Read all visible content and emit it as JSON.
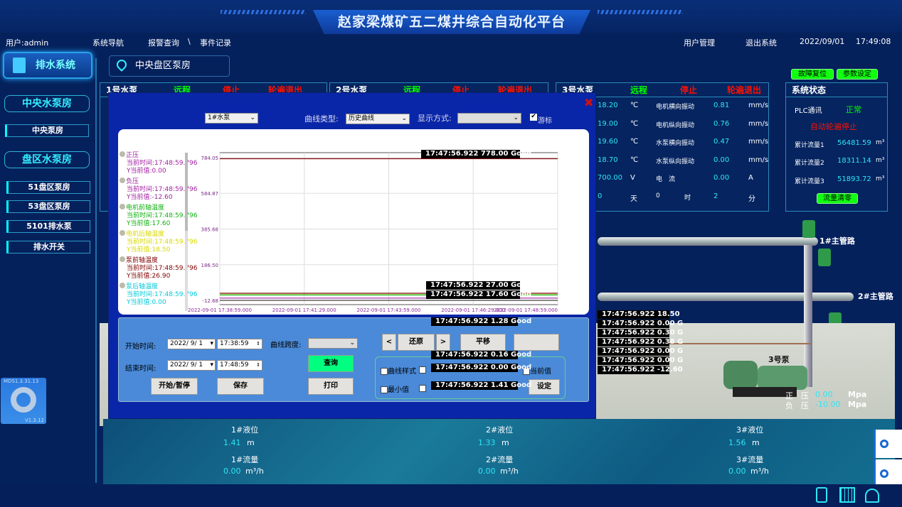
{
  "header": {
    "title": "赵家梁煤矿五二煤井综合自动化平台",
    "user": "用户:admin",
    "nav": [
      "系统导航",
      "报警查询",
      "\\",
      "事件记录"
    ],
    "user_mgmt": "用户管理",
    "logout": "退出系统",
    "date": "2022/09/01",
    "time": "17:49:08"
  },
  "sidebar": {
    "system": "排水系统",
    "group1": "中央水泵房",
    "group1_items": [
      "中央泵房"
    ],
    "group2": "盘区水泵房",
    "group2_items": [
      "51盘区泵房",
      "53盘区泵房",
      "5101排水泵",
      "排水开关"
    ]
  },
  "location": "中央盘区泵房",
  "top_buttons": {
    "fault_reset": "故障复位",
    "param_set": "参数设定"
  },
  "pumps": [
    {
      "name": "1号水泵",
      "mode": "远程",
      "state": "停止",
      "rotation": "轮遍退出"
    },
    {
      "name": "2号水泵",
      "mode": "远程",
      "state": "停止",
      "rotation": "轮遍退出"
    },
    {
      "name": "3号水泵",
      "mode": "远程",
      "state": "停止",
      "rotation": "轮遍退出",
      "rows": [
        {
          "v1": "18.20",
          "u1": "℃",
          "label": "电机横向振动",
          "v2": "0.81",
          "u2": "mm/s"
        },
        {
          "v1": "19.00",
          "u1": "℃",
          "label": "电机纵向振动",
          "v2": "0.76",
          "u2": "mm/s"
        },
        {
          "v1": "19.60",
          "u1": "℃",
          "label": "水泵横向振动",
          "v2": "0.47",
          "u2": "mm/s"
        },
        {
          "v1": "18.70",
          "u1": "℃",
          "label": "水泵纵向振动",
          "v2": "0.00",
          "u2": "mm/s"
        },
        {
          "v1": "700.00",
          "u1": "V",
          "label": "电　流",
          "v2": "0.00",
          "u2": "A"
        },
        {
          "v1": "0",
          "u1": "天",
          "label": "0",
          "lu": "时",
          "v2": "2",
          "u2": "分"
        }
      ]
    }
  ],
  "system_status": {
    "title": "系统状态",
    "plc_label": "PLC通讯",
    "plc_value": "正常",
    "auto": "自动轮遍停止",
    "flows": [
      {
        "label": "累计流量1",
        "value": "56481.59",
        "unit": "m³"
      },
      {
        "label": "累计流量2",
        "value": "18311.14",
        "unit": "m³"
      },
      {
        "label": "累计流量3",
        "value": "51893.72",
        "unit": "m³"
      }
    ],
    "clear": "流量清零"
  },
  "scene": {
    "main1": "1#主管路",
    "main2": "2#主管路",
    "pump3": "3号泵",
    "pos_label": "正　压",
    "pos_value": "0.00",
    "neg_label": "负　压",
    "neg_value": "-10.00",
    "unit": "Mpa",
    "tanks": [
      {
        "level_label": "1#液位",
        "level": "1.41",
        "level_unit": "m",
        "flow_label": "1#流量",
        "flow": "0.00",
        "flow_unit": "m³/h"
      },
      {
        "level_label": "2#液位",
        "level": "1.33",
        "level_unit": "m",
        "flow_label": "2#流量",
        "flow": "0.00",
        "flow_unit": "m³/h"
      },
      {
        "level_label": "3#液位",
        "level": "1.56",
        "level_unit": "m",
        "flow_label": "3#流量",
        "flow": "0.00",
        "flow_unit": "m³/h"
      }
    ]
  },
  "widget": {
    "top": "MDS1.3.31.13",
    "bottom": "V1.3.12"
  },
  "dialog": {
    "pump_select": "1#水泵",
    "curve_type_label": "曲线类型:",
    "curve_type": "历史曲线",
    "display_label": "显示方式:",
    "display": "",
    "cursor_label": "游标",
    "cursor_checked": true,
    "legend": [
      {
        "name": "正压",
        "time": "当前时间:17:48:59.796",
        "y": "Y当前值:0.00",
        "color": "#a020a0"
      },
      {
        "name": "负压",
        "time": "当前时间:17:48:59.796",
        "y": "Y当前值:-12.60",
        "color": "#a020a0"
      },
      {
        "name": "电机前轴温度",
        "time": "当前时间:17:48:59.796",
        "y": "Y当前值:17.60",
        "color": "#10b010"
      },
      {
        "name": "电机后轴温度",
        "time": "当前时间:17:48:59.796",
        "y": "Y当前值:18.50",
        "color": "#d8d800"
      },
      {
        "name": "泵前轴温度",
        "time": "当前时间:17:48:59.796",
        "y": "Y当前值:26.90",
        "color": "#800000"
      },
      {
        "name": "泵后轴温度",
        "time": "当前时间:17:48:59.796",
        "y": "Y当前值:0.00",
        "color": "#00c8d8"
      }
    ],
    "tooltips": [
      "17:47:56.922  778.00 Good",
      "17:47:56.922  27.00 Good",
      "17:47:56.922  17.60 Good",
      "17:47:56.922  18.50",
      "17:47:56.922  0.00 G",
      "17:47:56.922  1.28 Good",
      "17:47:56.922  0.30 G",
      "17:47:56.922  0.16 Good",
      "17:47:56.922  0.38 G",
      "17:47:56.922  0.00 Good",
      "17:47:56.922  0.00 G",
      "17:47:56.922  1.41 Good",
      "17:47:56.922  0.00 G",
      "17:47:56.922  -12.60"
    ],
    "controls": {
      "start_label": "开始时间:",
      "start_date": "2022/ 9/ 1",
      "start_time": "17:38:59",
      "end_label": "结束时间:",
      "end_date": "2022/ 9/ 1",
      "end_time": "17:48:59",
      "span_label": "曲线跨度:",
      "query": "查询",
      "print": "打印",
      "start_pause": "开始/暂停",
      "save": "保存",
      "prev": "<",
      "restore": "还原",
      "next": ">",
      "pan": "平移",
      "curve_style": "曲线样式",
      "current": "当前值",
      "min": "最小值",
      "set": "设定"
    }
  },
  "chart_data": {
    "type": "line",
    "title": "",
    "xlabel": "",
    "ylabel": "",
    "x_ticks": [
      "2022-09-01 17:38:59.000",
      "2022-09-01 17:41:29.000",
      "2022-09-01 17:43:59.000",
      "2022-09-01 17:46:29.000",
      "2022-09-01 17:48:59.000"
    ],
    "y_ticks": [
      "784.05",
      "584.87",
      "385.68",
      "186.50",
      "-12.68"
    ],
    "ylim": [
      -12.68,
      784.05
    ],
    "xlim": [
      "17:38:59",
      "17:48:59"
    ],
    "grid": true,
    "series": [
      {
        "values": [
          778,
          778,
          778,
          778,
          778
        ],
        "color": "#800000"
      },
      {
        "name": "泵前轴温度",
        "values": [
          27,
          27,
          27,
          27,
          27
        ],
        "color": "#800000"
      },
      {
        "name": "电机后轴温度",
        "values": [
          18.5,
          18.5,
          18.5,
          18.5,
          18.5
        ],
        "color": "#d8d800"
      },
      {
        "name": "电机前轴温度",
        "values": [
          17.6,
          17.6,
          17.6,
          17.6,
          17.6
        ],
        "color": "#10b010"
      },
      {
        "name": "正压",
        "values": [
          0,
          0,
          0,
          0,
          0
        ],
        "color": "#a020a0"
      },
      {
        "name": "负压",
        "values": [
          -12.6,
          -12.6,
          -12.6,
          -12.6,
          -12.6
        ],
        "color": "#404040"
      }
    ]
  }
}
